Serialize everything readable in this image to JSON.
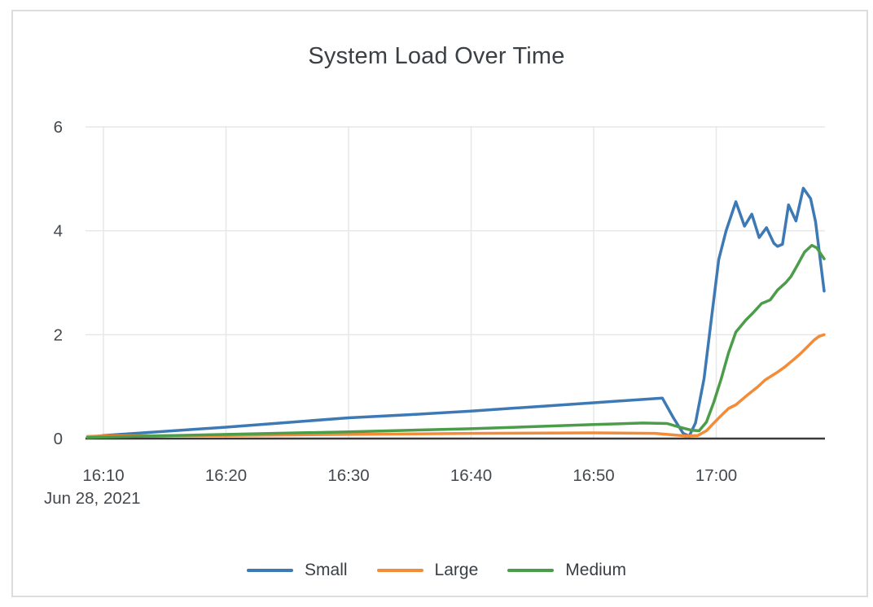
{
  "colors": {
    "grid": "#e7e7e7",
    "axis_line": "#3a3a3a",
    "text": "#45494e",
    "title_text": "#3b4045",
    "card_border": "#dcdcdc",
    "series_small": "#3d79b5",
    "series_large": "#f28c38",
    "series_medium": "#4b9d4a"
  },
  "chart_data": {
    "type": "line",
    "title": "System Load Over Time",
    "xlabel": "",
    "ylabel": "",
    "grid": true,
    "legend_position": "bottom-center",
    "x_axis": {
      "date_label": "Jun 28, 2021",
      "unit": "minutes after 16:00",
      "range": [
        8.7,
        68.9
      ],
      "ticks": [
        {
          "t": 10,
          "label": "16:10"
        },
        {
          "t": 20,
          "label": "16:20"
        },
        {
          "t": 30,
          "label": "16:30"
        },
        {
          "t": 40,
          "label": "16:40"
        },
        {
          "t": 50,
          "label": "16:50"
        },
        {
          "t": 60,
          "label": "17:00"
        }
      ]
    },
    "y_axis": {
      "range": [
        0,
        6
      ],
      "ticks": [
        {
          "v": 0,
          "label": "0"
        },
        {
          "v": 2,
          "label": "2"
        },
        {
          "v": 4,
          "label": "4"
        },
        {
          "v": 6,
          "label": "6"
        }
      ]
    },
    "series": [
      {
        "name": "Small",
        "color": "#3d79b5",
        "points": [
          [
            8.7,
            0.02
          ],
          [
            10,
            0.06
          ],
          [
            15,
            0.14
          ],
          [
            20,
            0.22
          ],
          [
            25,
            0.31
          ],
          [
            30,
            0.4
          ],
          [
            35,
            0.46
          ],
          [
            40,
            0.53
          ],
          [
            45,
            0.61
          ],
          [
            50,
            0.69
          ],
          [
            55.6,
            0.78
          ],
          [
            56.5,
            0.4
          ],
          [
            57.3,
            0.1
          ],
          [
            57.8,
            0.05
          ],
          [
            58.3,
            0.3
          ],
          [
            59,
            1.15
          ],
          [
            59.6,
            2.3
          ],
          [
            60.2,
            3.45
          ],
          [
            60.8,
            4.0
          ],
          [
            61.6,
            4.56
          ],
          [
            62.3,
            4.09
          ],
          [
            62.9,
            4.32
          ],
          [
            63.5,
            3.87
          ],
          [
            64.1,
            4.06
          ],
          [
            64.7,
            3.76
          ],
          [
            65.0,
            3.7
          ],
          [
            65.4,
            3.74
          ],
          [
            65.9,
            4.5
          ],
          [
            66.5,
            4.19
          ],
          [
            67.1,
            4.82
          ],
          [
            67.7,
            4.62
          ],
          [
            68.1,
            4.17
          ],
          [
            68.8,
            2.84
          ]
        ]
      },
      {
        "name": "Large",
        "color": "#f28c38",
        "points": [
          [
            8.7,
            0.04
          ],
          [
            10,
            0.05
          ],
          [
            20,
            0.06
          ],
          [
            30,
            0.08
          ],
          [
            40,
            0.1
          ],
          [
            50,
            0.11
          ],
          [
            55,
            0.1
          ],
          [
            56.5,
            0.07
          ],
          [
            57.5,
            0.05
          ],
          [
            58.5,
            0.06
          ],
          [
            59.2,
            0.15
          ],
          [
            59.8,
            0.3
          ],
          [
            60.3,
            0.42
          ],
          [
            61,
            0.58
          ],
          [
            61.6,
            0.65
          ],
          [
            62,
            0.73
          ],
          [
            62.6,
            0.85
          ],
          [
            63.4,
            1.0
          ],
          [
            64,
            1.13
          ],
          [
            64.6,
            1.22
          ],
          [
            65,
            1.28
          ],
          [
            65.6,
            1.38
          ],
          [
            66.2,
            1.5
          ],
          [
            66.8,
            1.62
          ],
          [
            67.4,
            1.76
          ],
          [
            68,
            1.9
          ],
          [
            68.4,
            1.97
          ],
          [
            68.8,
            2.0
          ]
        ]
      },
      {
        "name": "Medium",
        "color": "#4b9d4a",
        "points": [
          [
            8.7,
            0.02
          ],
          [
            10,
            0.03
          ],
          [
            20,
            0.08
          ],
          [
            30,
            0.13
          ],
          [
            40,
            0.19
          ],
          [
            50,
            0.27
          ],
          [
            54,
            0.3
          ],
          [
            56,
            0.29
          ],
          [
            57,
            0.22
          ],
          [
            58,
            0.16
          ],
          [
            58.6,
            0.15
          ],
          [
            59.2,
            0.32
          ],
          [
            59.8,
            0.7
          ],
          [
            60.4,
            1.15
          ],
          [
            61,
            1.65
          ],
          [
            61.6,
            2.05
          ],
          [
            62.4,
            2.28
          ],
          [
            63,
            2.42
          ],
          [
            63.7,
            2.6
          ],
          [
            64.4,
            2.67
          ],
          [
            65,
            2.86
          ],
          [
            65.7,
            3.01
          ],
          [
            66.1,
            3.12
          ],
          [
            66.6,
            3.33
          ],
          [
            67.2,
            3.59
          ],
          [
            67.8,
            3.72
          ],
          [
            68.2,
            3.67
          ],
          [
            68.8,
            3.46
          ]
        ]
      }
    ]
  }
}
